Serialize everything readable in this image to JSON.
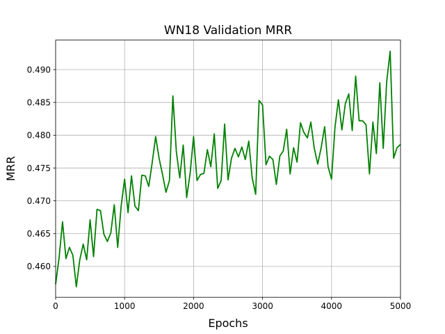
{
  "chart_data": {
    "type": "line",
    "title": "WN18 Validation MRR",
    "xlabel": "Epochs",
    "ylabel": "MRR",
    "xlim": [
      0,
      5000
    ],
    "ylim": [
      0.4553,
      0.4945
    ],
    "grid": true,
    "x_ticks": [
      0,
      1000,
      2000,
      3000,
      4000,
      5000
    ],
    "x_tick_labels": [
      "0",
      "1000",
      "2000",
      "3000",
      "4000",
      "5000"
    ],
    "y_ticks": [
      0.46,
      0.465,
      0.47,
      0.475,
      0.48,
      0.485,
      0.49
    ],
    "y_tick_labels": [
      "0.460",
      "0.465",
      "0.470",
      "0.475",
      "0.480",
      "0.485",
      "0.490"
    ],
    "series": [
      {
        "color": "#008000",
        "x": [
          0,
          50,
          100,
          150,
          200,
          250,
          300,
          350,
          400,
          450,
          500,
          550,
          600,
          650,
          700,
          750,
          800,
          850,
          900,
          950,
          1000,
          1050,
          1100,
          1150,
          1200,
          1250,
          1300,
          1350,
          1400,
          1450,
          1500,
          1550,
          1600,
          1650,
          1700,
          1750,
          1800,
          1850,
          1900,
          1950,
          2000,
          2050,
          2100,
          2150,
          2200,
          2250,
          2300,
          2350,
          2400,
          2450,
          2500,
          2550,
          2600,
          2650,
          2700,
          2750,
          2800,
          2850,
          2900,
          2950,
          3000,
          3050,
          3100,
          3150,
          3200,
          3250,
          3300,
          3350,
          3400,
          3450,
          3500,
          3550,
          3600,
          3650,
          3700,
          3750,
          3800,
          3850,
          3900,
          3950,
          4000,
          4050,
          4100,
          4150,
          4200,
          4250,
          4300,
          4350,
          4400,
          4450,
          4500,
          4550,
          4600,
          4650,
          4700,
          4750,
          4800,
          4850,
          4900,
          4950,
          5000
        ],
        "values": [
          0.4573,
          0.4613,
          0.4668,
          0.4612,
          0.4629,
          0.4617,
          0.4569,
          0.461,
          0.4634,
          0.461,
          0.4671,
          0.4615,
          0.4687,
          0.4685,
          0.4649,
          0.4638,
          0.4651,
          0.4694,
          0.4629,
          0.4692,
          0.4733,
          0.4682,
          0.4738,
          0.4692,
          0.4685,
          0.4739,
          0.4738,
          0.4722,
          0.4758,
          0.4798,
          0.4765,
          0.474,
          0.4713,
          0.4731,
          0.486,
          0.4775,
          0.4735,
          0.4785,
          0.4705,
          0.4742,
          0.4798,
          0.4731,
          0.474,
          0.4742,
          0.4778,
          0.4752,
          0.4802,
          0.4719,
          0.4731,
          0.4817,
          0.4732,
          0.4765,
          0.478,
          0.4767,
          0.4782,
          0.4763,
          0.4791,
          0.4735,
          0.471,
          0.4853,
          0.4846,
          0.4755,
          0.4768,
          0.4763,
          0.4725,
          0.4768,
          0.4776,
          0.4809,
          0.4741,
          0.4781,
          0.4759,
          0.4819,
          0.4804,
          0.4796,
          0.482,
          0.478,
          0.4756,
          0.4781,
          0.4813,
          0.4752,
          0.4733,
          0.4812,
          0.4854,
          0.4808,
          0.4848,
          0.4863,
          0.4807,
          0.489,
          0.4822,
          0.4822,
          0.4816,
          0.4741,
          0.482,
          0.4772,
          0.488,
          0.478,
          0.4882,
          0.4928,
          0.4765,
          0.4781,
          0.4786
        ]
      }
    ]
  }
}
